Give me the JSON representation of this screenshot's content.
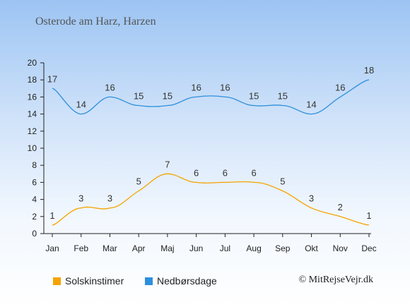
{
  "chart_data": {
    "type": "line",
    "title": "Osterode am Harz, Harzen",
    "categories": [
      "Jan",
      "Feb",
      "Mar",
      "Apr",
      "Maj",
      "Jun",
      "Jul",
      "Aug",
      "Sep",
      "Okt",
      "Nov",
      "Dec"
    ],
    "series": [
      {
        "name": "Solskinstimer",
        "color": "#f5a300",
        "values": [
          1,
          3,
          3,
          5,
          7,
          6,
          6,
          6,
          5,
          3,
          2,
          1
        ]
      },
      {
        "name": "Nedbørsdage",
        "color": "#2d8fdc",
        "values": [
          17,
          14,
          16,
          15,
          15,
          16,
          16,
          15,
          15,
          14,
          16,
          18
        ]
      }
    ],
    "yticks": [
      0,
      2,
      4,
      6,
      8,
      10,
      12,
      14,
      16,
      18,
      20
    ],
    "ylim": [
      0,
      20
    ],
    "grid": false,
    "legend_position": "bottom-left"
  },
  "credit": "© MitRejseVejr.dk"
}
